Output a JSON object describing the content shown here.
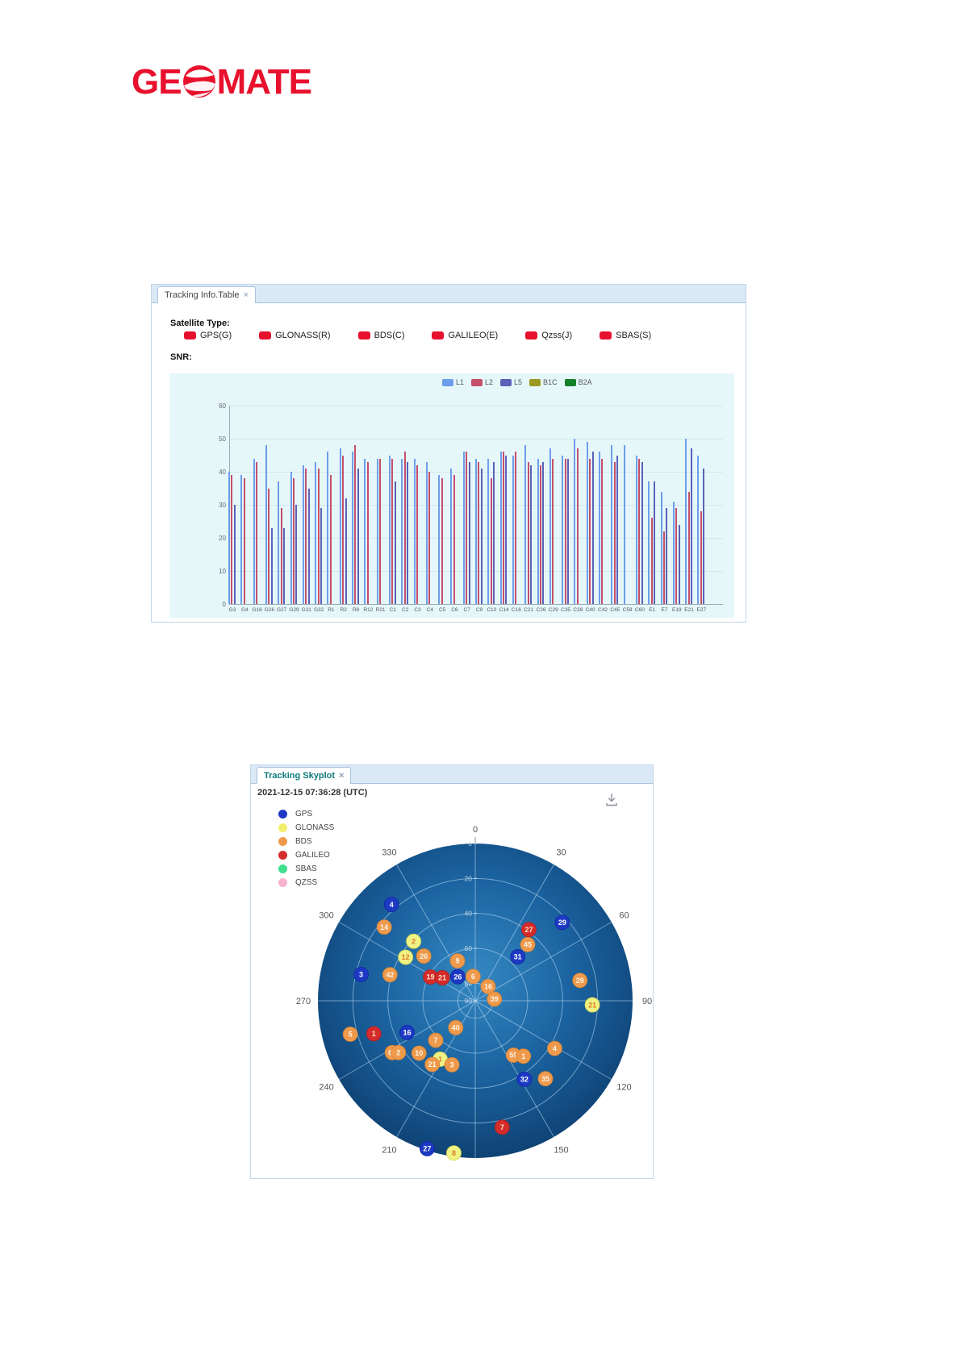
{
  "logo": {
    "text_left": "GE",
    "text_right": "MATE",
    "color": "#e8112d"
  },
  "panels": {
    "tracking_table": {
      "tab_label": "Tracking Info.Table",
      "tab_close": "×",
      "satellite_type_label": "Satellite Type:",
      "satellite_types": [
        {
          "label": "GPS(G)",
          "color": "#e8112d"
        },
        {
          "label": "GLONASS(R)",
          "color": "#e8112d"
        },
        {
          "label": "BDS(C)",
          "color": "#e8112d"
        },
        {
          "label": "GALILEO(E)",
          "color": "#e8112d"
        },
        {
          "label": "Qzss(J)",
          "color": "#e8112d"
        },
        {
          "label": "SBAS(S)",
          "color": "#e8112d"
        }
      ],
      "snr_label": "SNR:"
    },
    "skyplot": {
      "tab_label": "Tracking Skyplot",
      "tab_close": "×",
      "timestamp": "2021-12-15 07:36:28 (UTC)",
      "legend": [
        {
          "name": "GPS",
          "color": "#1d39c4"
        },
        {
          "name": "GLONASS",
          "color": "#f2ef6c"
        },
        {
          "name": "BDS",
          "color": "#ee9a4d"
        },
        {
          "name": "GALILEO",
          "color": "#d42b2b"
        },
        {
          "name": "SBAS",
          "color": "#3fe08e"
        },
        {
          "name": "QZSS",
          "color": "#f6b3cd"
        }
      ]
    }
  },
  "chart_data": [
    {
      "type": "bar",
      "title": "SNR",
      "xlabel": "",
      "ylabel": "",
      "ylim": [
        0,
        60
      ],
      "yticks": [
        0,
        10,
        20,
        30,
        40,
        50,
        60
      ],
      "grid": true,
      "legend_position": "top-center",
      "categories": [
        "G3",
        "G4",
        "G16",
        "G26",
        "G27",
        "G29",
        "G31",
        "G32",
        "R1",
        "R2",
        "R8",
        "R12",
        "R21",
        "C1",
        "C2",
        "C3",
        "C4",
        "C5",
        "C6",
        "C7",
        "C9",
        "C10",
        "C14",
        "C16",
        "C21",
        "C26",
        "C29",
        "C35",
        "C39",
        "C40",
        "C42",
        "C45",
        "C59",
        "C60",
        "E1",
        "E7",
        "E19",
        "E21",
        "E27"
      ],
      "series": [
        {
          "name": "L1",
          "color": "#6d9eeb",
          "values": [
            40,
            39,
            44,
            48,
            37,
            40,
            42,
            43,
            46,
            47,
            46,
            44,
            44,
            45,
            44,
            44,
            43,
            39,
            41,
            46,
            44,
            44,
            46,
            45,
            48,
            44,
            47,
            45,
            50,
            49,
            46,
            48,
            48,
            45,
            37,
            34,
            31,
            50,
            45
          ]
        },
        {
          "name": "L2",
          "color": "#c4506a",
          "values": [
            39,
            38,
            43,
            35,
            29,
            38,
            41,
            41,
            39,
            45,
            48,
            43,
            44,
            44,
            46,
            42,
            40,
            38,
            39,
            46,
            43,
            38,
            46,
            46,
            43,
            42,
            44,
            44,
            47,
            44,
            44,
            43,
            null,
            44,
            26,
            22,
            29,
            34,
            28
          ]
        },
        {
          "name": "L5",
          "color": "#5b61b8",
          "values": [
            30,
            null,
            null,
            23,
            23,
            30,
            35,
            29,
            null,
            32,
            41,
            null,
            null,
            37,
            43,
            null,
            null,
            null,
            null,
            43,
            41,
            43,
            45,
            null,
            42,
            43,
            null,
            44,
            null,
            46,
            null,
            45,
            null,
            43,
            37,
            29,
            24,
            47,
            41
          ]
        },
        {
          "name": "B1C",
          "color": "#9a9a20",
          "values": []
        },
        {
          "name": "B2A",
          "color": "#14802a",
          "values": []
        }
      ]
    },
    {
      "type": "scatter",
      "subtype": "skyplot",
      "title": "Tracking Skyplot",
      "azimuth_labels": [
        0,
        30,
        60,
        90,
        120,
        150,
        210,
        240,
        270,
        300,
        330
      ],
      "elevation_ring_labels": [
        0,
        20,
        40,
        60,
        80,
        90
      ],
      "satellites": [
        {
          "system": "GPS",
          "prn": 4,
          "az": 319,
          "el": 17
        },
        {
          "system": "GPS",
          "prn": 3,
          "az": 283,
          "el": 23
        },
        {
          "system": "GPS",
          "prn": 16,
          "az": 245,
          "el": 47
        },
        {
          "system": "GPS",
          "prn": 26,
          "az": 324,
          "el": 73
        },
        {
          "system": "GPS",
          "prn": 31,
          "az": 44,
          "el": 55
        },
        {
          "system": "GPS",
          "prn": 29,
          "az": 48,
          "el": 23
        },
        {
          "system": "GPS",
          "prn": 32,
          "az": 148,
          "el": 37
        },
        {
          "system": "GPS",
          "prn": 27,
          "az": 198,
          "el": 1
        },
        {
          "system": "GLONASS",
          "prn": 2,
          "az": 314,
          "el": 41
        },
        {
          "system": "GLONASS",
          "prn": 12,
          "az": 302,
          "el": 43
        },
        {
          "system": "GLONASS",
          "prn": 21,
          "az": 92,
          "el": 23
        },
        {
          "system": "GLONASS",
          "prn": 1,
          "az": 211,
          "el": 51
        },
        {
          "system": "GLONASS",
          "prn": 8,
          "az": 188,
          "el": 2
        },
        {
          "system": "BDS",
          "prn": 14,
          "az": 309,
          "el": 23
        },
        {
          "system": "BDS",
          "prn": 26,
          "az": 311,
          "el": 51
        },
        {
          "system": "BDS",
          "prn": 9,
          "az": 336,
          "el": 65
        },
        {
          "system": "BDS",
          "prn": 42,
          "az": 287,
          "el": 39
        },
        {
          "system": "BDS",
          "prn": 6,
          "az": 355,
          "el": 76
        },
        {
          "system": "BDS",
          "prn": 16,
          "az": 42,
          "el": 79
        },
        {
          "system": "BDS",
          "prn": 39,
          "az": 85,
          "el": 79
        },
        {
          "system": "BDS",
          "prn": 45,
          "az": 43,
          "el": 46
        },
        {
          "system": "BDS",
          "prn": 29,
          "az": 79,
          "el": 29
        },
        {
          "system": "BDS",
          "prn": 5,
          "az": 255,
          "el": 16
        },
        {
          "system": "BDS",
          "prn": 60,
          "az": 238,
          "el": 34
        },
        {
          "system": "BDS",
          "prn": 2,
          "az": 236,
          "el": 37
        },
        {
          "system": "BDS",
          "prn": 10,
          "az": 227,
          "el": 46
        },
        {
          "system": "BDS",
          "prn": 7,
          "az": 225,
          "el": 58
        },
        {
          "system": "BDS",
          "prn": 40,
          "az": 216,
          "el": 71
        },
        {
          "system": "BDS",
          "prn": 21,
          "az": 214,
          "el": 46
        },
        {
          "system": "BDS",
          "prn": 3,
          "az": 200,
          "el": 51
        },
        {
          "system": "BDS",
          "prn": 59,
          "az": 145,
          "el": 52
        },
        {
          "system": "BDS",
          "prn": 1,
          "az": 139,
          "el": 48
        },
        {
          "system": "BDS",
          "prn": 4,
          "az": 121,
          "el": 37
        },
        {
          "system": "BDS",
          "prn": 35,
          "az": 138,
          "el": 30
        },
        {
          "system": "GALILEO",
          "prn": 27,
          "az": 37,
          "el": 39
        },
        {
          "system": "GALILEO",
          "prn": 19,
          "az": 298,
          "el": 61
        },
        {
          "system": "GALILEO",
          "prn": 21,
          "az": 305,
          "el": 67
        },
        {
          "system": "GALILEO",
          "prn": 1,
          "az": 252,
          "el": 29
        },
        {
          "system": "GALILEO",
          "prn": 7,
          "az": 168,
          "el": 16
        }
      ]
    }
  ]
}
